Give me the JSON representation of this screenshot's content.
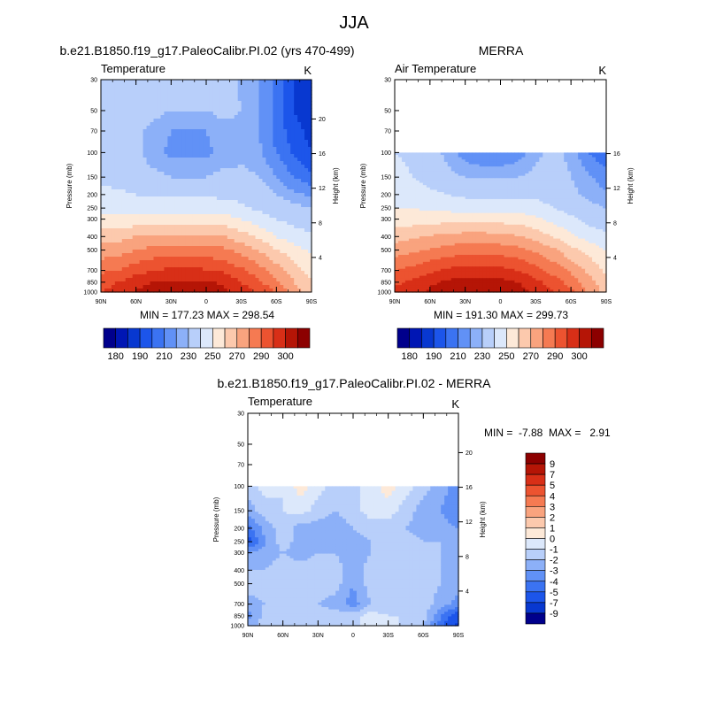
{
  "page_title": "JJA",
  "panels": [
    {
      "title": "b.e21.B1850.f19_g17.PaleoCalibr.PI.02 (yrs 470-499)",
      "left_label": "Temperature",
      "right_label": "K",
      "min_max": "MIN = 177.23  MAX = 298.54"
    },
    {
      "title": "MERRA",
      "left_label": "Air Temperature",
      "right_label": "K",
      "min_max": "MIN = 191.30  MAX = 299.73"
    },
    {
      "title": "b.e21.B1850.f19_g17.PaleoCalibr.PI.02 - MERRA",
      "left_label": "Temperature",
      "right_label": "K",
      "min_max": "MIN =  -7.88  MAX =   2.91"
    }
  ],
  "chart_data": [
    {
      "type": "heatmap",
      "title": "b.e21.B1850.f19_g17.PaleoCalibr.PI.02 (yrs 470-499)",
      "variable": "Temperature",
      "units": "K",
      "xlabel": "",
      "ylabel": "Pressure (mb)",
      "y2label": "Height (km)",
      "x_ticks": [
        "90N",
        "60N",
        "30N",
        "0",
        "30S",
        "60S",
        "90S"
      ],
      "y_ticks": [
        30,
        50,
        70,
        100,
        150,
        200,
        250,
        300,
        400,
        500,
        700,
        850,
        1000
      ],
      "y2_ticks": [
        4,
        8,
        12,
        16,
        20
      ],
      "ylim": [
        1000,
        30
      ],
      "xlim": [
        90,
        -90
      ],
      "data_top_mb": 30,
      "profile": [
        {
          "p": 30,
          "values": [
            218,
            218,
            214,
            214,
            214,
            214,
            214,
            214,
            209,
            205,
            198,
            190,
            186
          ]
        },
        {
          "p": 50,
          "values": [
            218,
            216,
            214,
            212,
            210,
            210,
            210,
            212,
            210,
            205,
            198,
            190,
            186
          ]
        },
        {
          "p": 70,
          "values": [
            216,
            214,
            212,
            208,
            205,
            205,
            205,
            208,
            208,
            205,
            198,
            192,
            188
          ]
        },
        {
          "p": 100,
          "values": [
            216,
            214,
            212,
            206,
            204,
            204,
            204,
            206,
            208,
            206,
            200,
            194,
            190
          ]
        },
        {
          "p": 150,
          "values": [
            218,
            216,
            214,
            212,
            210,
            210,
            210,
            212,
            212,
            210,
            205,
            200,
            196
          ]
        },
        {
          "p": 200,
          "values": [
            222,
            222,
            220,
            218,
            218,
            218,
            218,
            218,
            217,
            214,
            210,
            206,
            204
          ]
        },
        {
          "p": 250,
          "values": [
            226,
            226,
            226,
            226,
            226,
            226,
            226,
            225,
            222,
            218,
            214,
            212,
            210
          ]
        },
        {
          "p": 300,
          "values": [
            232,
            232,
            234,
            235,
            235,
            235,
            235,
            234,
            230,
            225,
            220,
            216,
            214
          ]
        },
        {
          "p": 400,
          "values": [
            245,
            246,
            250,
            252,
            253,
            253,
            252,
            250,
            245,
            238,
            230,
            225,
            222
          ]
        },
        {
          "p": 500,
          "values": [
            254,
            256,
            260,
            263,
            265,
            265,
            264,
            262,
            256,
            250,
            240,
            234,
            228
          ]
        },
        {
          "p": 700,
          "values": [
            268,
            270,
            276,
            280,
            282,
            282,
            281,
            278,
            272,
            264,
            255,
            245,
            236
          ]
        },
        {
          "p": 850,
          "values": [
            276,
            280,
            286,
            290,
            292,
            292,
            291,
            288,
            280,
            272,
            262,
            250,
            240
          ]
        },
        {
          "p": 1000,
          "values": [
            280,
            284,
            291,
            296,
            298,
            298,
            297,
            293,
            286,
            278,
            270,
            255,
            242
          ]
        }
      ],
      "x_profile_lat": [
        90,
        75,
        60,
        45,
        30,
        15,
        0,
        -15,
        -30,
        -45,
        -60,
        -75,
        -90
      ],
      "contour_levels": [
        180,
        185,
        190,
        195,
        200,
        205,
        210,
        220,
        230,
        240,
        250,
        260,
        270,
        280,
        290,
        300
      ],
      "min": 177.23,
      "max": 298.54
    },
    {
      "type": "heatmap",
      "title": "MERRA",
      "variable": "Air Temperature",
      "units": "K",
      "xlabel": "",
      "ylabel": "Pressure (mb)",
      "y2label": "Height (km)",
      "x_ticks": [
        "90N",
        "60N",
        "30N",
        "0",
        "30S",
        "60S",
        "90S"
      ],
      "y_ticks": [
        30,
        50,
        70,
        100,
        150,
        200,
        250,
        300,
        400,
        500,
        700,
        850,
        1000
      ],
      "y2_ticks": [
        4,
        8,
        12,
        16
      ],
      "ylim": [
        1000,
        30
      ],
      "xlim": [
        90,
        -90
      ],
      "data_top_mb": 100,
      "profile": [
        {
          "p": 100,
          "values": [
            220,
            218,
            214,
            208,
            202,
            200,
            200,
            202,
            208,
            212,
            208,
            200,
            196
          ]
        },
        {
          "p": 150,
          "values": [
            224,
            220,
            216,
            212,
            210,
            209,
            209,
            210,
            212,
            214,
            210,
            206,
            202
          ]
        },
        {
          "p": 200,
          "values": [
            228,
            226,
            222,
            220,
            218,
            218,
            218,
            218,
            218,
            216,
            212,
            208,
            206
          ]
        },
        {
          "p": 250,
          "values": [
            230,
            230,
            228,
            227,
            226,
            226,
            226,
            226,
            224,
            220,
            216,
            212,
            210
          ]
        },
        {
          "p": 300,
          "values": [
            234,
            235,
            236,
            236,
            236,
            236,
            236,
            235,
            232,
            226,
            222,
            216,
            214
          ]
        },
        {
          "p": 400,
          "values": [
            246,
            248,
            251,
            253,
            254,
            254,
            253,
            251,
            246,
            240,
            232,
            226,
            222
          ]
        },
        {
          "p": 500,
          "values": [
            255,
            258,
            261,
            264,
            266,
            266,
            265,
            263,
            258,
            252,
            243,
            236,
            230
          ]
        },
        {
          "p": 700,
          "values": [
            270,
            273,
            278,
            282,
            284,
            284,
            283,
            280,
            274,
            266,
            258,
            248,
            238
          ]
        },
        {
          "p": 850,
          "values": [
            278,
            282,
            288,
            292,
            294,
            294,
            293,
            290,
            283,
            275,
            266,
            254,
            243
          ]
        },
        {
          "p": 1000,
          "values": [
            282,
            286,
            292,
            297,
            299,
            299,
            298,
            295,
            288,
            281,
            273,
            259,
            246
          ]
        }
      ],
      "x_profile_lat": [
        90,
        75,
        60,
        45,
        30,
        15,
        0,
        -15,
        -30,
        -45,
        -60,
        -75,
        -90
      ],
      "contour_levels": [
        180,
        185,
        190,
        195,
        200,
        205,
        210,
        220,
        230,
        240,
        250,
        260,
        270,
        280,
        290,
        300
      ],
      "min": 191.3,
      "max": 299.73
    },
    {
      "type": "heatmap",
      "title": "b.e21.B1850.f19_g17.PaleoCalibr.PI.02 - MERRA",
      "variable": "Temperature",
      "units": "K",
      "xlabel": "",
      "ylabel": "Pressure (mb)",
      "y2label": "Height (km)",
      "x_ticks": [
        "90N",
        "60N",
        "30N",
        "0",
        "30S",
        "60S",
        "90S"
      ],
      "y_ticks": [
        30,
        50,
        70,
        100,
        150,
        200,
        250,
        300,
        400,
        500,
        700,
        850,
        1000
      ],
      "y2_ticks": [
        4,
        8,
        12,
        16,
        20
      ],
      "ylim": [
        1000,
        30
      ],
      "xlim": [
        90,
        -90
      ],
      "data_top_mb": 100,
      "profile": [
        {
          "p": 100,
          "values": [
            -1.5,
            -0.5,
            -1.0,
            0.5,
            -0.5,
            -1.5,
            -1.5,
            -0.5,
            0.5,
            -0.5,
            -1.5,
            -2.5,
            -3.5
          ]
        },
        {
          "p": 150,
          "values": [
            -2.5,
            -1.5,
            -1.0,
            -0.5,
            -1.5,
            -2.0,
            -1.5,
            -0.5,
            -0.5,
            -1.5,
            -2.5,
            -3.0,
            -4.0
          ]
        },
        {
          "p": 200,
          "values": [
            -4.5,
            -2.5,
            -1.5,
            -2.5,
            -2.5,
            -2.5,
            -2.0,
            -1.5,
            -1.5,
            -2.0,
            -2.5,
            -2.5,
            -3.0
          ]
        },
        {
          "p": 250,
          "values": [
            -5.5,
            -3.0,
            -1.5,
            -2.5,
            -2.5,
            -2.5,
            -2.5,
            -2.0,
            -1.5,
            -1.5,
            -2.0,
            -2.0,
            -2.5
          ]
        },
        {
          "p": 300,
          "values": [
            -3.0,
            -2.5,
            -2.0,
            -2.5,
            -2.0,
            -2.0,
            -3.0,
            -2.0,
            -1.5,
            -1.5,
            -1.5,
            -2.0,
            -2.5
          ]
        },
        {
          "p": 400,
          "values": [
            -2.0,
            -2.0,
            -1.5,
            -1.5,
            -1.5,
            -1.5,
            -2.5,
            -1.5,
            -1.5,
            -1.5,
            -1.5,
            -2.0,
            -2.0
          ]
        },
        {
          "p": 500,
          "values": [
            -1.5,
            -1.5,
            -1.0,
            -1.5,
            -1.5,
            -1.5,
            -3.0,
            -1.5,
            -1.5,
            -1.5,
            -1.5,
            -2.0,
            -2.5
          ]
        },
        {
          "p": 700,
          "values": [
            -2.5,
            -2.0,
            -1.5,
            -2.0,
            -2.0,
            -2.5,
            -3.5,
            -2.0,
            -1.5,
            -1.5,
            -1.5,
            -2.5,
            -3.5
          ]
        },
        {
          "p": 850,
          "values": [
            -3.5,
            -1.5,
            -2.0,
            -1.5,
            -1.5,
            -1.5,
            -1.5,
            -0.5,
            -1.0,
            -1.0,
            -1.5,
            -4.0,
            -6.0
          ]
        },
        {
          "p": 1000,
          "values": [
            -2.5,
            -1.5,
            -1.5,
            -1.5,
            -1.5,
            -1.5,
            -1.5,
            -0.5,
            -0.5,
            -1.5,
            -2.0,
            -4.5,
            -7.5
          ]
        }
      ],
      "x_profile_lat": [
        90,
        75,
        60,
        45,
        30,
        15,
        0,
        -15,
        -30,
        -45,
        -60,
        -75,
        -90
      ],
      "contour_levels": [
        -9,
        -7,
        -5,
        -4,
        -3,
        -2,
        -1,
        0,
        1,
        2,
        3,
        4,
        5,
        7,
        9
      ],
      "min": -7.88,
      "max": 2.91
    }
  ],
  "colorbars": {
    "abs": {
      "labels": [
        "180",
        "190",
        "210",
        "230",
        "250",
        "270",
        "290",
        "300"
      ],
      "colors": [
        "#00008c",
        "#0016b4",
        "#0838d0",
        "#1c55ea",
        "#3b73f2",
        "#6191f6",
        "#8cb0f8",
        "#b8cffa",
        "#dce8fb",
        "#fde9d8",
        "#fcc9ad",
        "#f9a37e",
        "#f57a52",
        "#ec5330",
        "#d82f17",
        "#b51506",
        "#8c0000"
      ]
    },
    "diff": {
      "labels": [
        "9",
        "7",
        "5",
        "4",
        "3",
        "2",
        "1",
        "0",
        "-1",
        "-2",
        "-3",
        "-4",
        "-5",
        "-7",
        "-9"
      ],
      "colors": [
        "#8c0000",
        "#b51506",
        "#d82f17",
        "#ec5330",
        "#f57a52",
        "#f9a37e",
        "#fcc9ad",
        "#fde9d8",
        "#dce8fb",
        "#b8cffa",
        "#8cb0f8",
        "#6191f6",
        "#3b73f2",
        "#1c55ea",
        "#0838d0",
        "#00008c"
      ]
    }
  }
}
